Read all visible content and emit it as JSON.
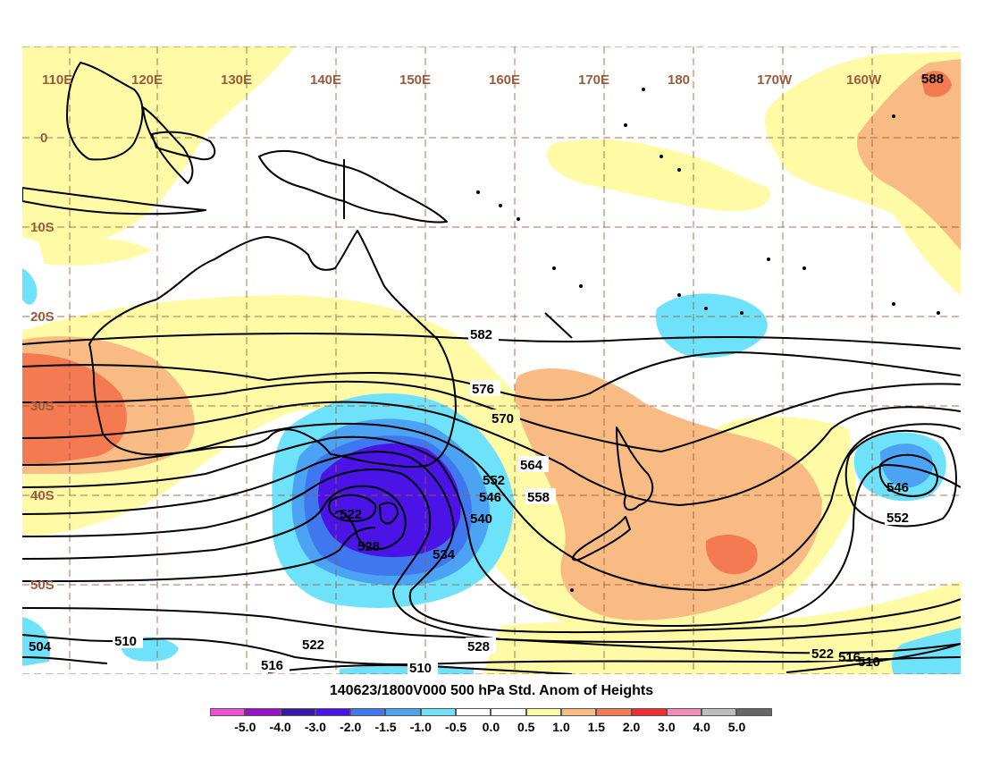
{
  "title": "140623/1800V000 500 hPa Std. Anom of Heights",
  "lon_labels": [
    "110E",
    "120E",
    "130E",
    "140E",
    "150E",
    "160E",
    "170E",
    "180",
    "170W",
    "160W"
  ],
  "lat_labels": [
    "0",
    "10S",
    "20S",
    "30S",
    "40S",
    "50S"
  ],
  "contour_labels": [
    "588",
    "582",
    "576",
    "570",
    "564",
    "558",
    "552",
    "546",
    "540",
    "534",
    "528",
    "522",
    "516",
    "510",
    "504"
  ],
  "legend": {
    "labels": [
      "-5.0",
      "-4.0",
      "-3.0",
      "-2.0",
      "-1.5",
      "-1.0",
      "-0.5",
      "0.0",
      "0.5",
      "1.0",
      "1.5",
      "2.0",
      "3.0",
      "4.0",
      "5.0"
    ],
    "colors": [
      "#ec4fd6",
      "#9b10c9",
      "#3a16a8",
      "#4b14e6",
      "#3f78ee",
      "#4ca3f3",
      "#6ee2fb",
      "#ffffff",
      "#ffffff",
      "#fffaa6",
      "#f8bb84",
      "#f47a52",
      "#ec2f2f",
      "#f38bb7",
      "#bdbdbd",
      "#666666"
    ]
  },
  "colors": {
    "grid": "#9c5a3c",
    "label": "#9c5a3c"
  }
}
